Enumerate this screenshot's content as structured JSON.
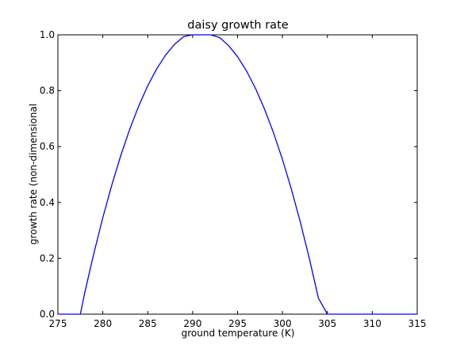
{
  "chart_data": {
    "type": "line",
    "title": "daisy growth rate",
    "xlabel": "ground temperature (K)",
    "ylabel": "growth rate (non-dimensional",
    "xlim": [
      275,
      315
    ],
    "ylim": [
      0.0,
      1.0
    ],
    "x_ticks": [
      "275",
      "280",
      "285",
      "290",
      "295",
      "300",
      "305",
      "310",
      "315"
    ],
    "y_ticks": [
      "0.0",
      "0.2",
      "0.4",
      "0.6",
      "0.8",
      "1.0"
    ],
    "grid": false,
    "line_color": "#0000ff",
    "series": [
      {
        "x": [
          275,
          276,
          277,
          277.5,
          278,
          279,
          280,
          281,
          282,
          283,
          284,
          285,
          286,
          287,
          288,
          289,
          290,
          291,
          292,
          293,
          294,
          295,
          296,
          297,
          298,
          299,
          300,
          301,
          302,
          303,
          304,
          305,
          306,
          307,
          308,
          309,
          310,
          311,
          312,
          312.5,
          313,
          314,
          315
        ],
        "y": [
          0,
          0,
          0,
          0,
          0.0784,
          0.2176,
          0.3456,
          0.4624,
          0.568,
          0.6624,
          0.7456,
          0.8176,
          0.8784,
          0.928,
          0.9664,
          0.9936,
          1.0096,
          1.0144,
          1.008,
          0.9904,
          0.9616,
          0.9216,
          0.8704,
          0.808,
          0.7344,
          0.6496,
          0.5536,
          0.4464,
          0.328,
          0.1984,
          0.0576,
          0,
          0,
          0,
          0,
          0,
          0,
          0,
          0,
          0,
          0,
          0,
          0
        ]
      }
    ]
  }
}
